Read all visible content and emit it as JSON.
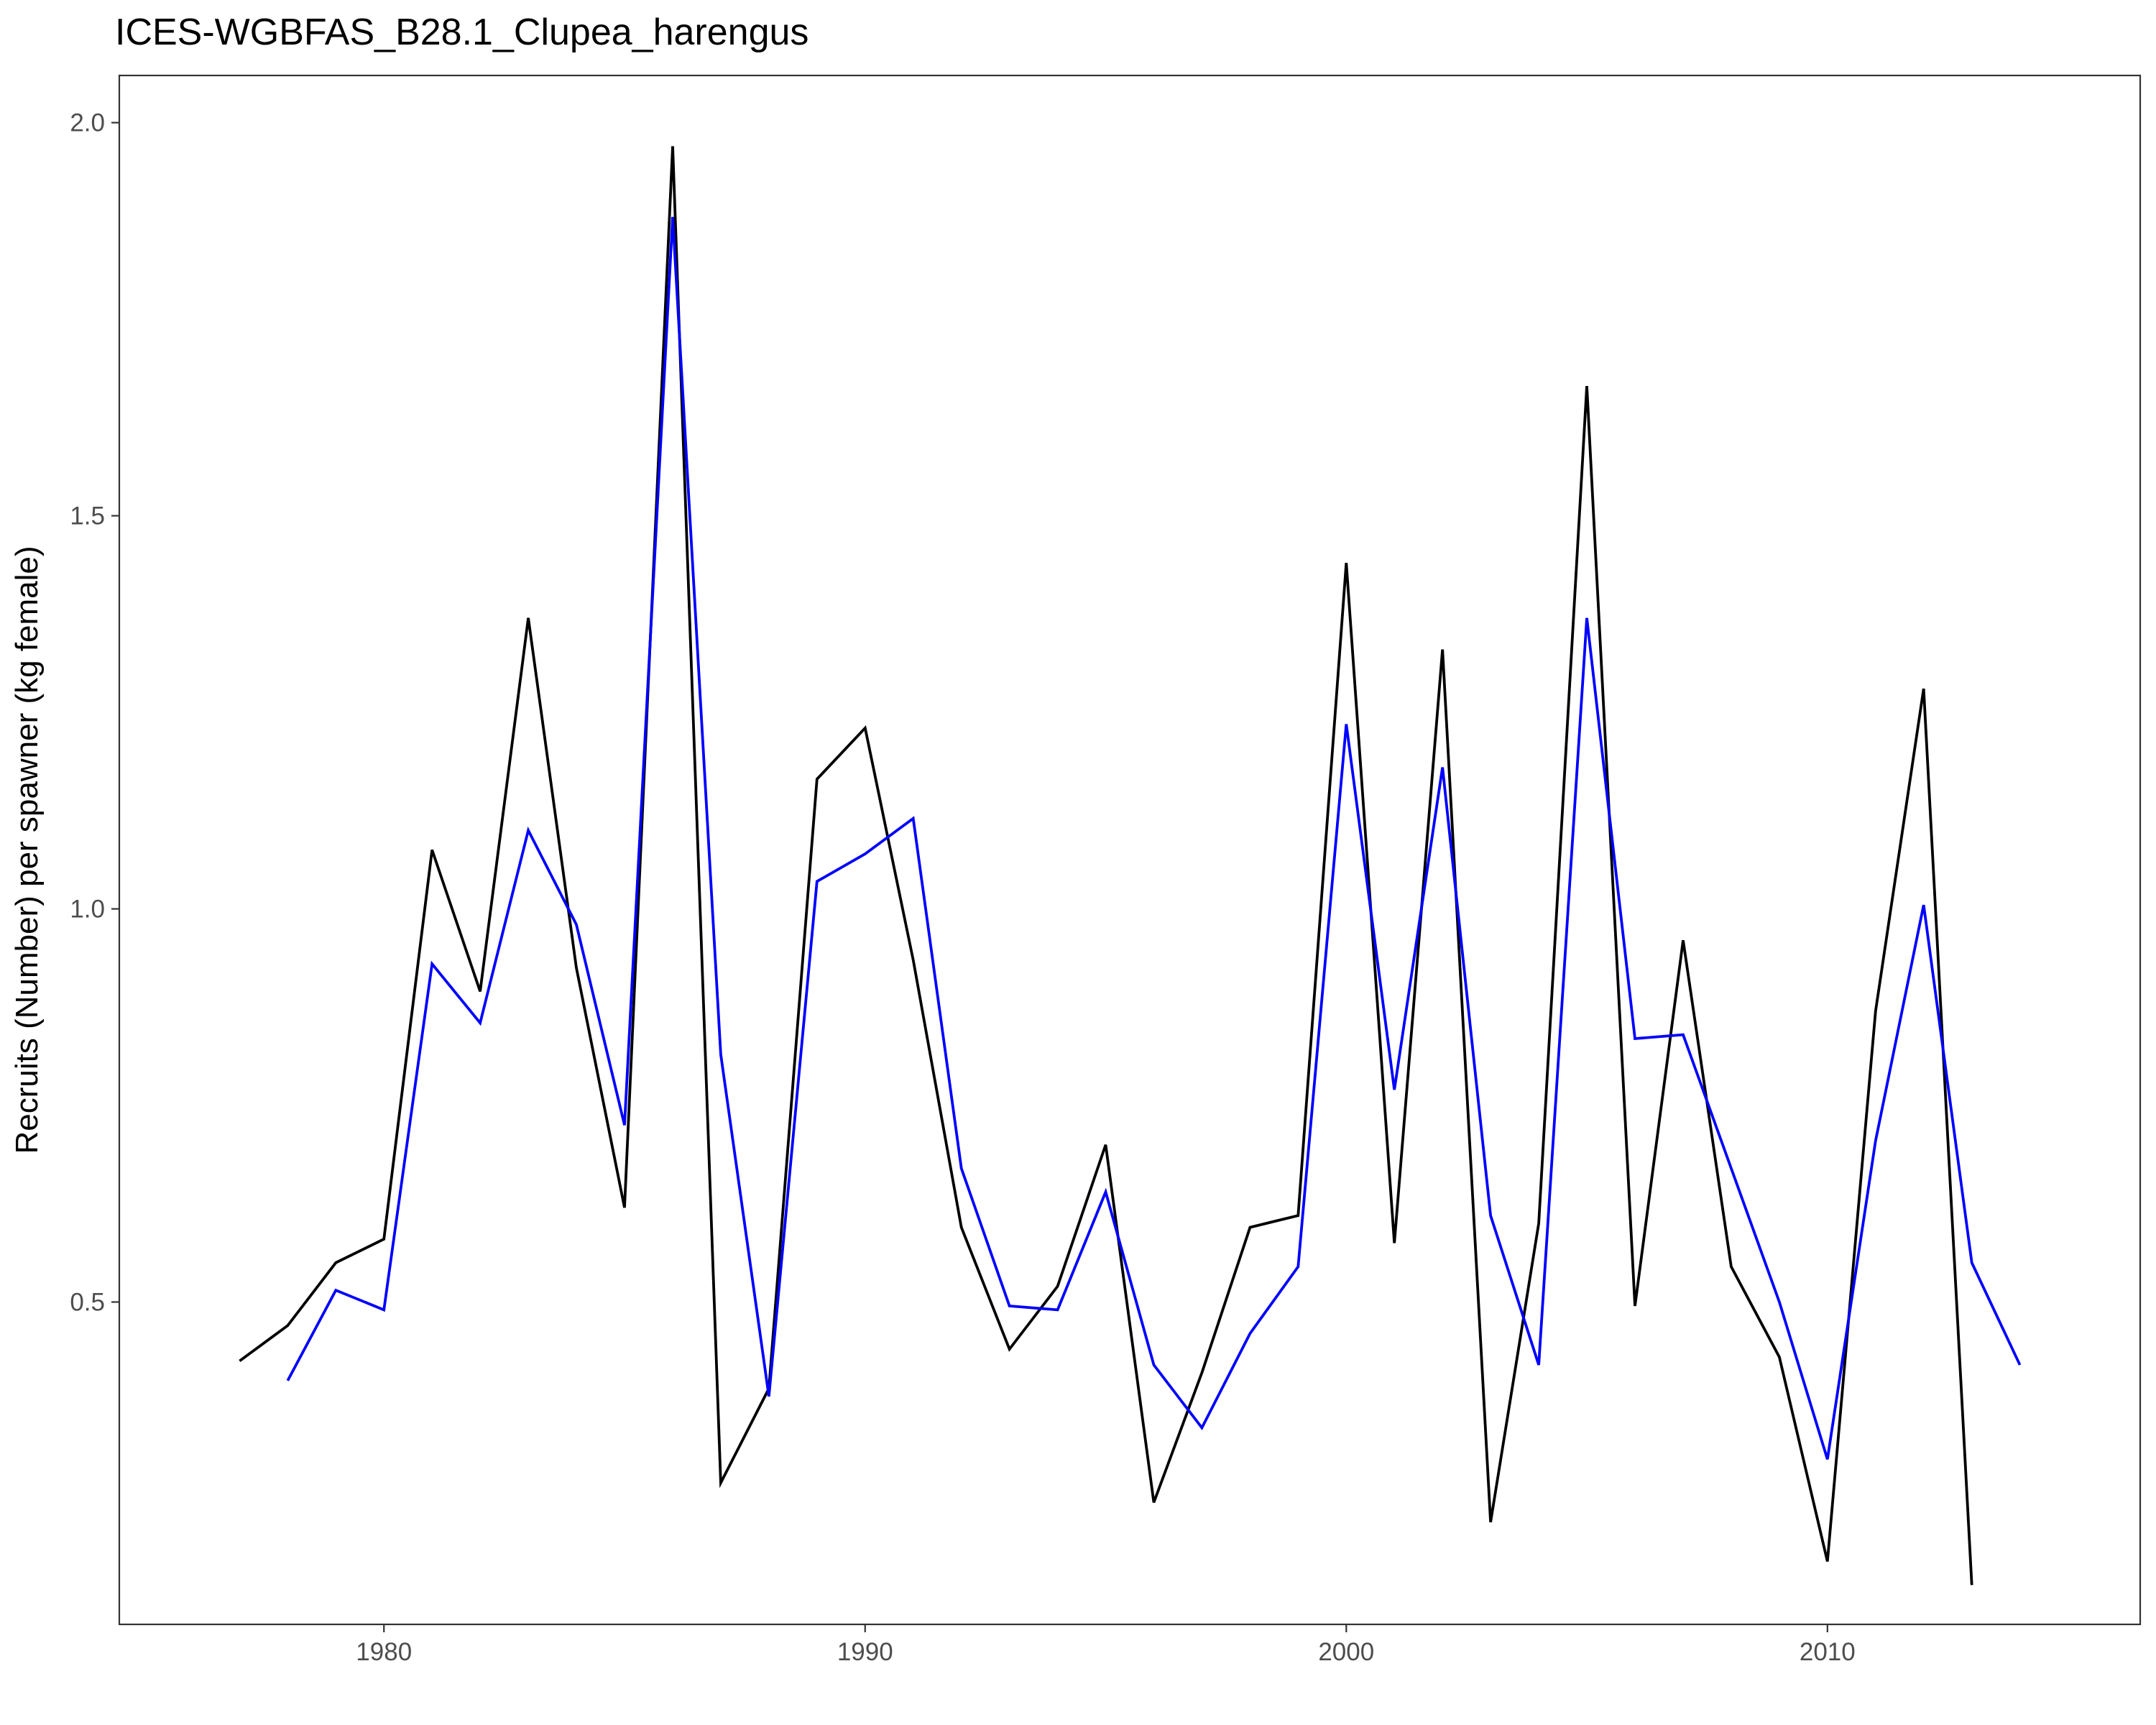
{
  "chart_data": {
    "type": "line",
    "title": "ICES-WGBFAS_B28.1_Clupea_harengus",
    "xlabel": "",
    "ylabel": "Recruits (Number) per spawner (kg female)",
    "xlim": [
      1974.5,
      2016.5
    ],
    "ylim": [
      0.09,
      2.06
    ],
    "x_ticks": [
      1980,
      1990,
      2000,
      2010
    ],
    "y_ticks": [
      0.5,
      1.0,
      1.5,
      2.0
    ],
    "y_tick_labels": [
      "0.5",
      "1.0",
      "1.5",
      "2.0"
    ],
    "grid": false,
    "legend": "none",
    "series": [
      {
        "color": "#000000",
        "x": [
          1977,
          1978,
          1979,
          1980,
          1981,
          1982,
          1983,
          1984,
          1985,
          1986,
          1987,
          1988,
          1989,
          1990,
          1991,
          1992,
          1993,
          1994,
          1995,
          1996,
          1997,
          1998,
          1999,
          2000,
          2001,
          2002,
          2003,
          2004,
          2005,
          2006,
          2007,
          2008,
          2009,
          2010,
          2011,
          2012,
          2013
        ],
        "values": [
          0.425,
          0.47,
          0.55,
          0.58,
          1.075,
          0.895,
          1.37,
          0.925,
          0.62,
          1.97,
          0.27,
          0.39,
          1.165,
          1.23,
          0.935,
          0.595,
          0.44,
          0.52,
          0.7,
          0.245,
          0.41,
          0.595,
          0.61,
          1.44,
          0.575,
          1.33,
          0.22,
          0.6,
          1.665,
          0.495,
          0.96,
          0.545,
          0.43,
          0.17,
          0.87,
          1.28,
          0.14
        ]
      },
      {
        "color": "#0000ff",
        "x": [
          1978,
          1979,
          1980,
          1981,
          1982,
          1983,
          1984,
          1985,
          1986,
          1987,
          1988,
          1989,
          1990,
          1991,
          1992,
          1993,
          1994,
          1995,
          1996,
          1997,
          1998,
          1999,
          2000,
          2001,
          2002,
          2003,
          2004,
          2005,
          2006,
          2007,
          2008,
          2009,
          2010,
          2011,
          2012,
          2013,
          2014
        ],
        "values": [
          0.4,
          0.515,
          0.49,
          0.93,
          0.855,
          1.1,
          0.98,
          0.725,
          1.88,
          0.815,
          0.38,
          1.035,
          1.07,
          1.115,
          0.67,
          0.495,
          0.49,
          0.64,
          0.42,
          0.34,
          0.46,
          0.545,
          1.235,
          0.77,
          1.18,
          0.61,
          0.42,
          1.37,
          0.835,
          0.84,
          0.67,
          0.5,
          0.3,
          0.705,
          1.005,
          0.55,
          0.42
        ]
      }
    ]
  }
}
